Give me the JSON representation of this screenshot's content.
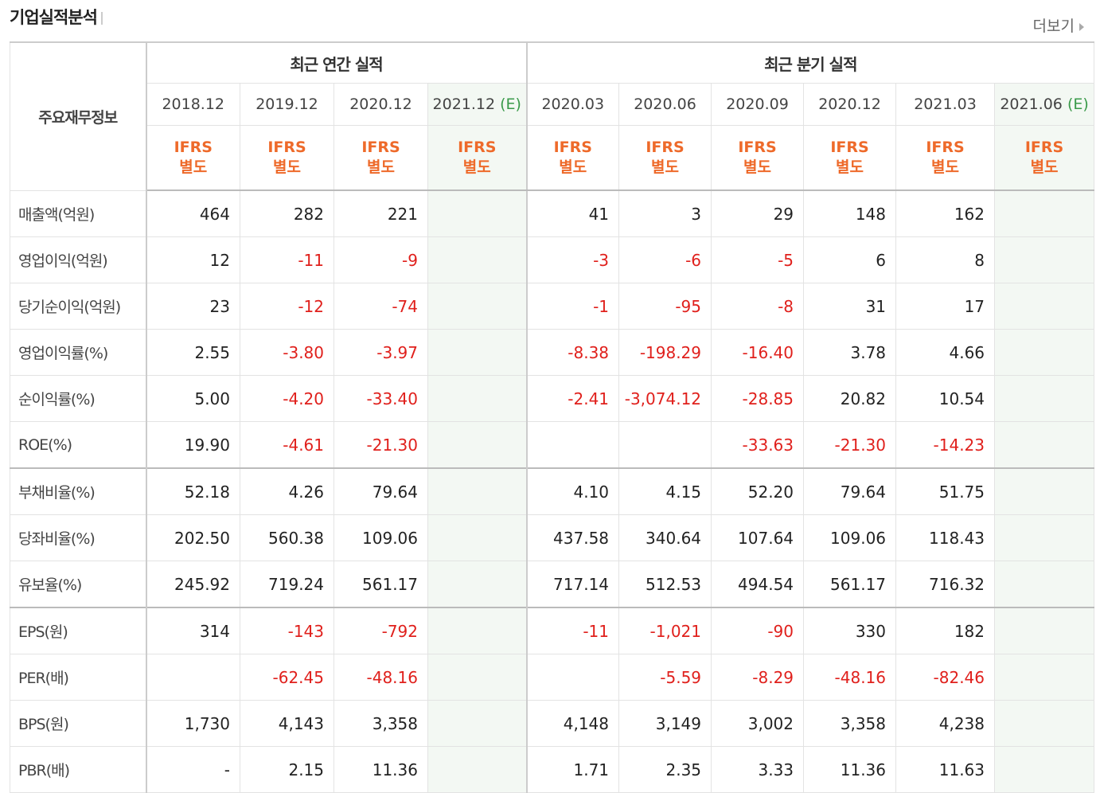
{
  "title": "기업실적분석",
  "more_label": "더보기",
  "header": {
    "row_label": "주요재무정보",
    "annual_label": "최근 연간 실적",
    "quarter_label": "최근 분기 실적",
    "ifrs_line1": "IFRS",
    "ifrs_line2": "별도",
    "annual_dates": [
      "2018.12",
      "2019.12",
      "2020.12",
      "2021.12"
    ],
    "quarter_dates": [
      "2020.03",
      "2020.06",
      "2020.09",
      "2020.12",
      "2021.03",
      "2021.06"
    ],
    "estimate_mark": "(E)"
  },
  "rows": [
    {
      "label": "매출액(억원)",
      "values": [
        "464",
        "282",
        "221",
        "",
        "41",
        "3",
        "29",
        "148",
        "162",
        ""
      ]
    },
    {
      "label": "영업이익(억원)",
      "values": [
        "12",
        "-11",
        "-9",
        "",
        "-3",
        "-6",
        "-5",
        "6",
        "8",
        ""
      ]
    },
    {
      "label": "당기순이익(억원)",
      "values": [
        "23",
        "-12",
        "-74",
        "",
        "-1",
        "-95",
        "-8",
        "31",
        "17",
        ""
      ]
    },
    {
      "label": "영업이익률(%)",
      "values": [
        "2.55",
        "-3.80",
        "-3.97",
        "",
        "-8.38",
        "-198.29",
        "-16.40",
        "3.78",
        "4.66",
        ""
      ]
    },
    {
      "label": "순이익률(%)",
      "values": [
        "5.00",
        "-4.20",
        "-33.40",
        "",
        "-2.41",
        "-3,074.12",
        "-28.85",
        "20.82",
        "10.54",
        ""
      ]
    },
    {
      "label": "ROE(%)",
      "values": [
        "19.90",
        "-4.61",
        "-21.30",
        "",
        "",
        "",
        "-33.63",
        "-21.30",
        "-14.23",
        ""
      ]
    },
    {
      "label": "부채비율(%)",
      "values": [
        "52.18",
        "4.26",
        "79.64",
        "",
        "4.10",
        "4.15",
        "52.20",
        "79.64",
        "51.75",
        ""
      ]
    },
    {
      "label": "당좌비율(%)",
      "values": [
        "202.50",
        "560.38",
        "109.06",
        "",
        "437.58",
        "340.64",
        "107.64",
        "109.06",
        "118.43",
        ""
      ]
    },
    {
      "label": "유보율(%)",
      "values": [
        "245.92",
        "719.24",
        "561.17",
        "",
        "717.14",
        "512.53",
        "494.54",
        "561.17",
        "716.32",
        ""
      ]
    },
    {
      "label": "EPS(원)",
      "values": [
        "314",
        "-143",
        "-792",
        "",
        "-11",
        "-1,021",
        "-90",
        "330",
        "182",
        ""
      ]
    },
    {
      "label": "PER(배)",
      "values": [
        "",
        "-62.45",
        "-48.16",
        "",
        "",
        "-5.59",
        "-8.29",
        "-48.16",
        "-82.46",
        ""
      ]
    },
    {
      "label": "BPS(원)",
      "values": [
        "1,730",
        "4,143",
        "3,358",
        "",
        "4,148",
        "3,149",
        "3,002",
        "3,358",
        "4,238",
        ""
      ]
    },
    {
      "label": "PBR(배)",
      "values": [
        "-",
        "2.15",
        "11.36",
        "",
        "1.71",
        "2.35",
        "3.33",
        "11.36",
        "11.63",
        ""
      ]
    }
  ]
}
